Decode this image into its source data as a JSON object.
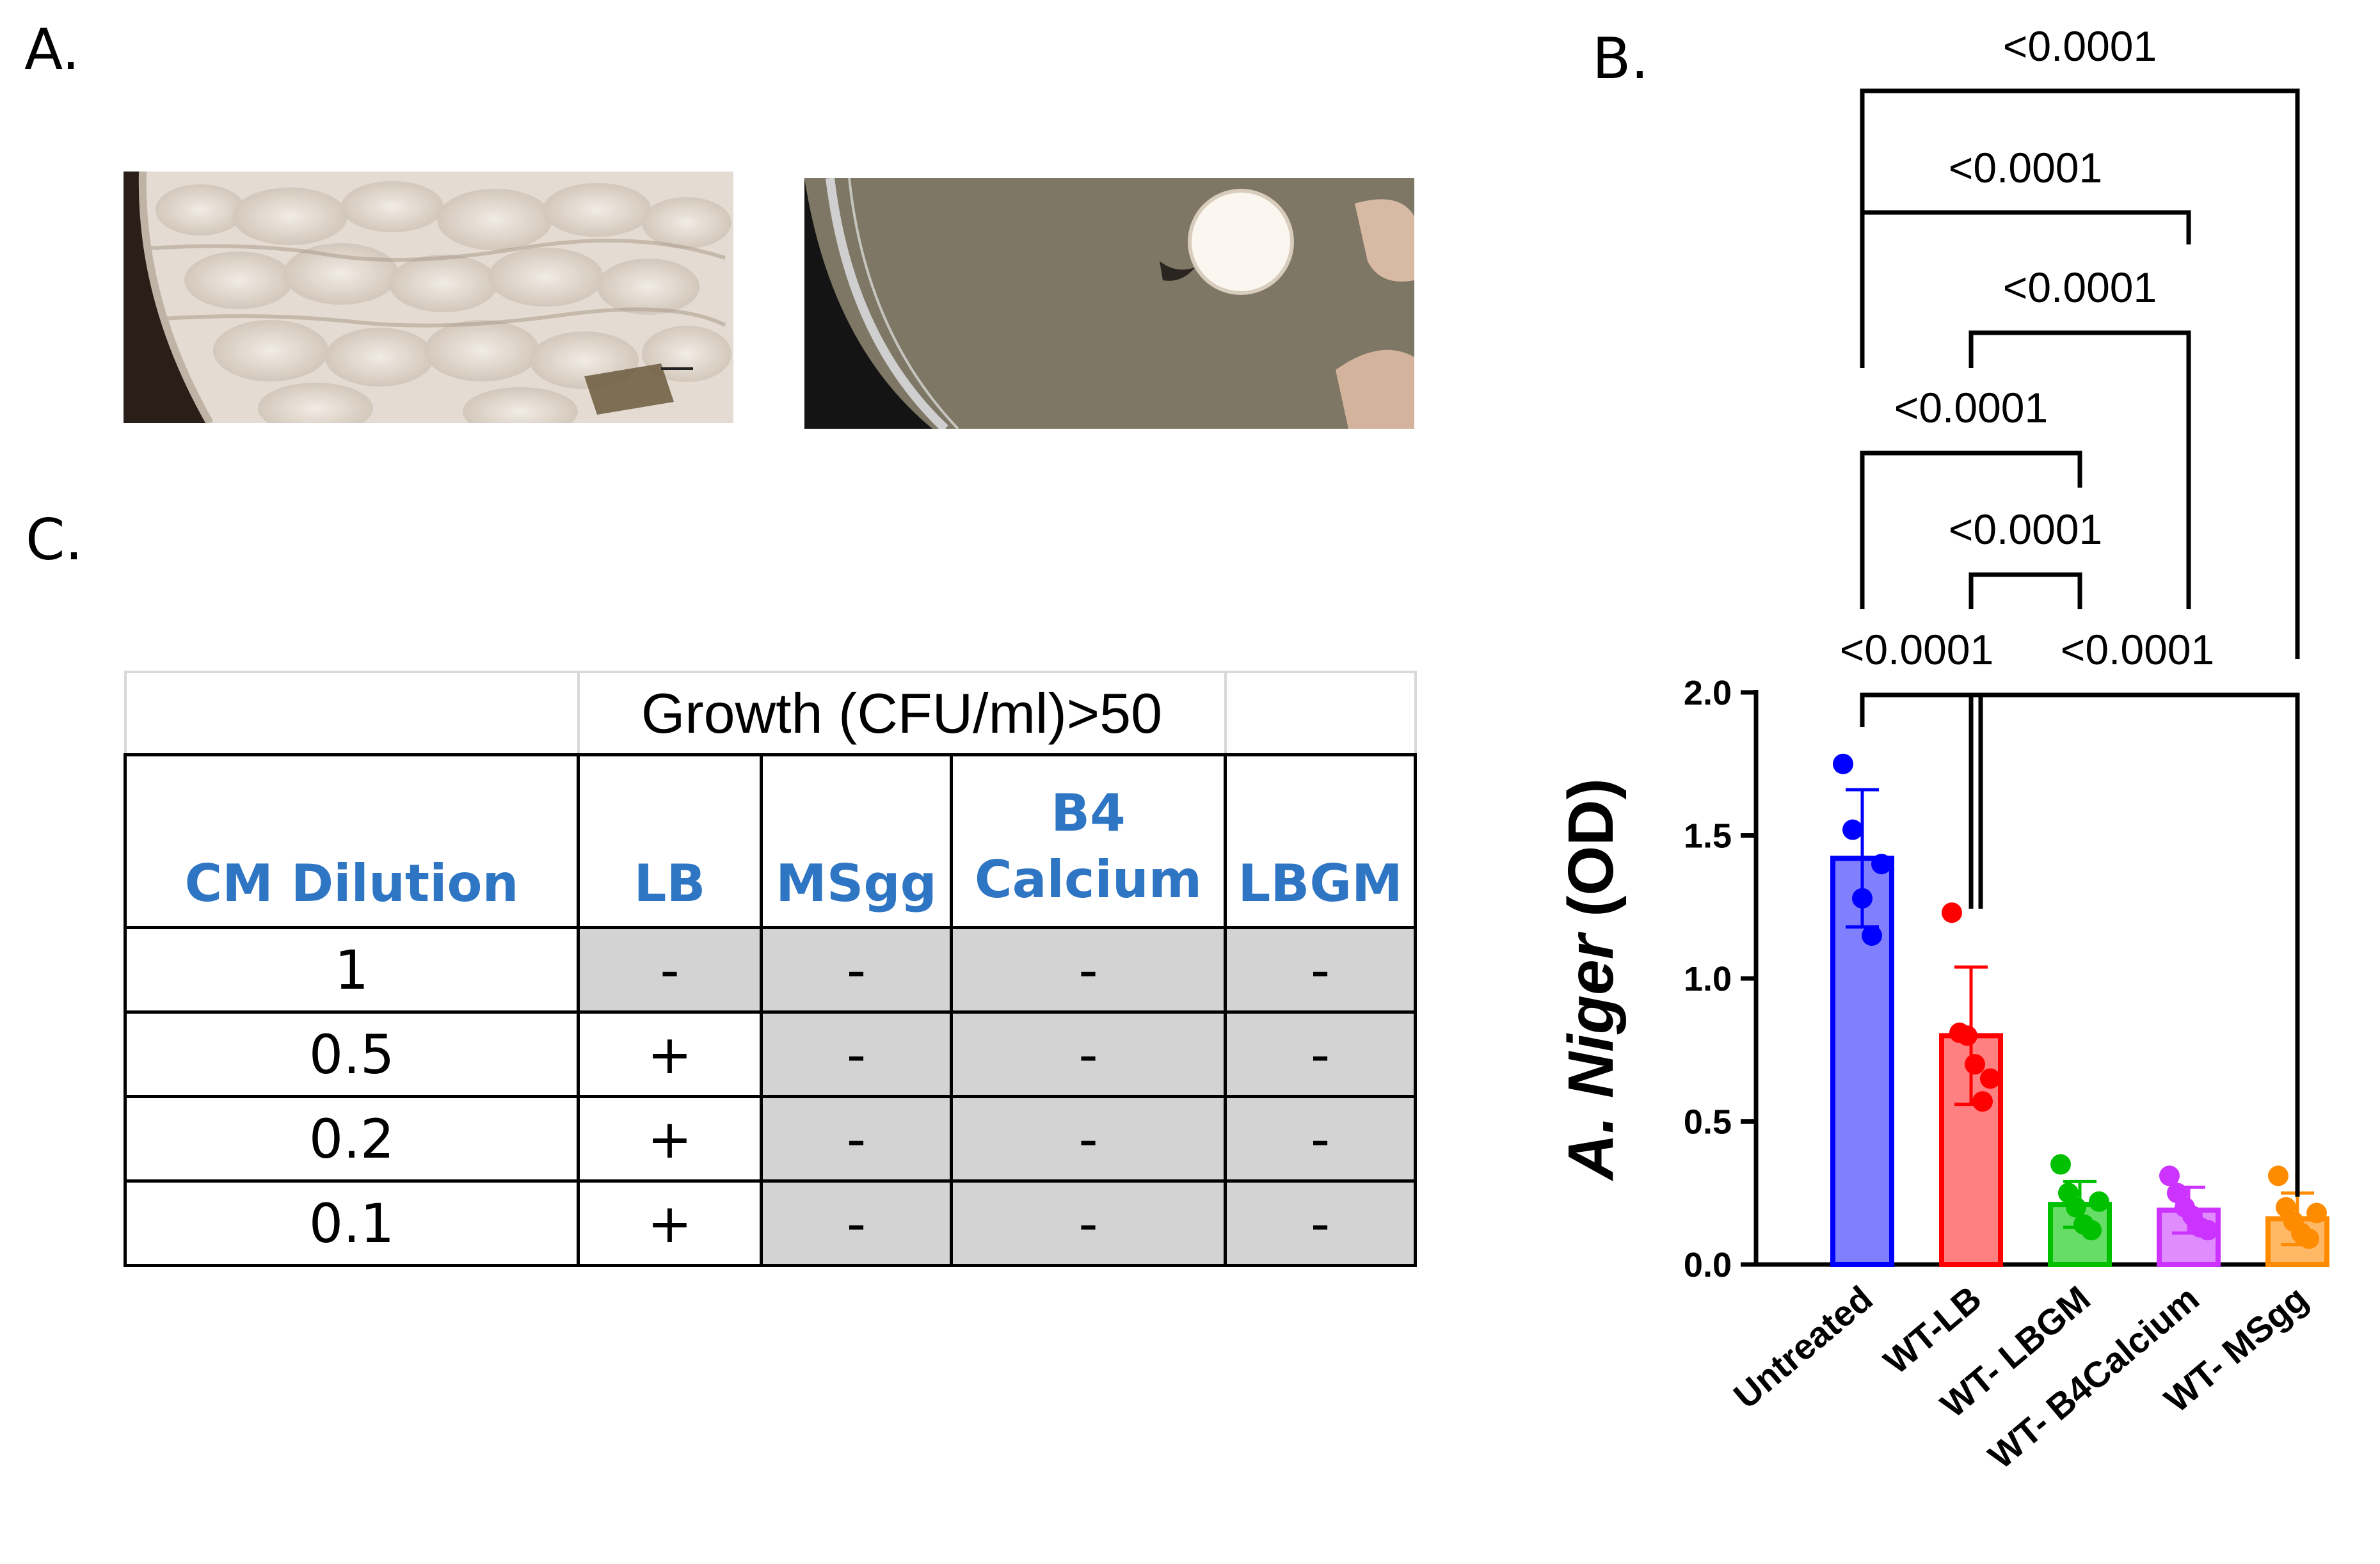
{
  "panel_labels": {
    "a": "A.",
    "b": "B.",
    "c": "C."
  },
  "photos": [
    {
      "name": "fungal-lawn-plate",
      "description_icon": "petri-dish-icon"
    },
    {
      "name": "inhibited-plate",
      "description_icon": "petri-dish-icon"
    }
  ],
  "table": {
    "top_header": "Growth (CFU/ml)>50",
    "column_headers": [
      "CM Dilution",
      "LB",
      "MSgg",
      "B4\nCalcium",
      "LBGM"
    ],
    "rows": [
      {
        "dilution": "1",
        "cells": [
          "-",
          "-",
          "-",
          "-"
        ],
        "shaded": [
          true,
          true,
          true,
          true
        ]
      },
      {
        "dilution": "0.5",
        "cells": [
          "+",
          "-",
          "-",
          "-"
        ],
        "shaded": [
          false,
          true,
          true,
          true
        ]
      },
      {
        "dilution": "0.2",
        "cells": [
          "+",
          "-",
          "-",
          "-"
        ],
        "shaded": [
          false,
          true,
          true,
          true
        ]
      },
      {
        "dilution": "0.1",
        "cells": [
          "+",
          "-",
          "-",
          "-"
        ],
        "shaded": [
          false,
          true,
          true,
          true
        ]
      }
    ],
    "header_color": "#2e75c3",
    "shade_color": "#d3d3d3"
  },
  "chart_data": {
    "type": "bar",
    "title": "",
    "ylabel_italic": "A.   Niger",
    "ylabel_suffix": " (OD)",
    "ylim": [
      0,
      2.0
    ],
    "yticks": [
      "0.0",
      "0.5",
      "1.0",
      "1.5",
      "2.0"
    ],
    "ytick_values": [
      0,
      0.5,
      1.0,
      1.5,
      2.0
    ],
    "categories": [
      "Untreated",
      "WT-LB",
      "WT- LBGM",
      "WT- B4Calcium",
      "WT- MSgg"
    ],
    "values": [
      1.42,
      0.8,
      0.21,
      0.19,
      0.16
    ],
    "errors": [
      0.24,
      0.24,
      0.08,
      0.08,
      0.09
    ],
    "points": [
      [
        1.75,
        1.52,
        1.28,
        1.15,
        1.4
      ],
      [
        1.23,
        0.81,
        0.8,
        0.7,
        0.57,
        0.65
      ],
      [
        0.35,
        0.25,
        0.2,
        0.14,
        0.12,
        0.22
      ],
      [
        0.31,
        0.25,
        0.2,
        0.17,
        0.13,
        0.12
      ],
      [
        0.31,
        0.2,
        0.15,
        0.11,
        0.09,
        0.18
      ]
    ],
    "colors": [
      "#0000ff",
      "#ff0000",
      "#00c000",
      "#cc33ff",
      "#ff8c00"
    ],
    "fill_colors": [
      "#8080ff",
      "#ff8080",
      "#66dd66",
      "#e08cff",
      "#ffb866"
    ],
    "comparisons": [
      {
        "from": 0,
        "to": 4,
        "label": "<0.0001"
      },
      {
        "from": 0,
        "to": 3,
        "label": "<0.0001"
      },
      {
        "from": 1,
        "to": 3,
        "label": "<0.0001"
      },
      {
        "from": 0,
        "to": 2,
        "label": "<0.0001"
      },
      {
        "from": 1,
        "to": 2,
        "label": "<0.0001"
      },
      {
        "from": 0,
        "to": 1,
        "label": "<0.0001"
      },
      {
        "from": 1,
        "to": 4,
        "label": "<0.0001"
      }
    ]
  }
}
